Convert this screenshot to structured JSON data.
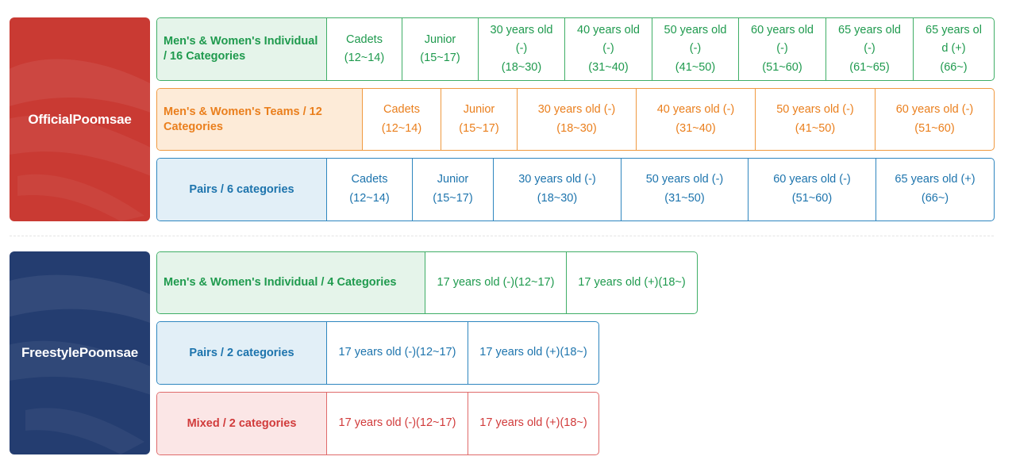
{
  "official": {
    "title": "OfficialPoomsae",
    "individual": {
      "title": "Men's & Women's Individual / 16 Categories",
      "cells": [
        {
          "l1": "Cadets",
          "l2": "(12~14)",
          "l3": ""
        },
        {
          "l1": "Junior",
          "l2": "(15~17)",
          "l3": ""
        },
        {
          "l1": "30 years old",
          "l2": "(-)",
          "l3": "(18~30)"
        },
        {
          "l1": "40 years old",
          "l2": "(-)",
          "l3": "(31~40)"
        },
        {
          "l1": "50 years old",
          "l2": "(-)",
          "l3": "(41~50)"
        },
        {
          "l1": "60 years old",
          "l2": "(-)",
          "l3": "(51~60)"
        },
        {
          "l1": "65 years old",
          "l2": "(-)",
          "l3": "(61~65)"
        },
        {
          "l1": "65 years ol",
          "l2": "d (+)",
          "l3": "(66~)"
        }
      ]
    },
    "teams": {
      "title": "Men's & Women's Teams / 12 Categories",
      "cells": [
        {
          "l1": "Cadets",
          "l2": "(12~14)"
        },
        {
          "l1": "Junior",
          "l2": "(15~17)"
        },
        {
          "l1": "30 years old (-)",
          "l2": "(18~30)"
        },
        {
          "l1": "40 years old (-)",
          "l2": "(31~40)"
        },
        {
          "l1": "50 years old (-)",
          "l2": "(41~50)"
        },
        {
          "l1": "60 years old (-)",
          "l2": "(51~60)"
        }
      ]
    },
    "pairs": {
      "title": "Pairs / 6 categories",
      "cells": [
        {
          "l1": "Cadets",
          "l2": "(12~14)"
        },
        {
          "l1": "Junior",
          "l2": "(15~17)"
        },
        {
          "l1": "30 years old (-)",
          "l2": "(18~30)"
        },
        {
          "l1": "50 years old (-)",
          "l2": "(31~50)"
        },
        {
          "l1": "60 years old (-)",
          "l2": "(51~60)"
        },
        {
          "l1": "65 years old (+)",
          "l2": "(66~)"
        }
      ]
    }
  },
  "freestyle": {
    "title": "FreestylePoomsae",
    "individual": {
      "title": "Men's & Women's Individual / 4 Categories",
      "cells": [
        "17 years old (-)(12~17)",
        "17 years old (+)(18~)"
      ]
    },
    "pairs": {
      "title": "Pairs / 2 categories",
      "cells": [
        "17 years old (-)(12~17)",
        "17 years old (+)(18~)"
      ]
    },
    "mixed": {
      "title": "Mixed / 2 categories",
      "cells": [
        "17 years old (-)(12~17)",
        "17 years old (+)(18~)"
      ]
    }
  },
  "colors": {
    "official_panel": "#c93a33",
    "freestyle_panel": "#243d70",
    "individual": "#1f9a4e",
    "teams": "#ea7f1d",
    "pairs": "#1d74ad",
    "mixed": "#d13b3b"
  }
}
